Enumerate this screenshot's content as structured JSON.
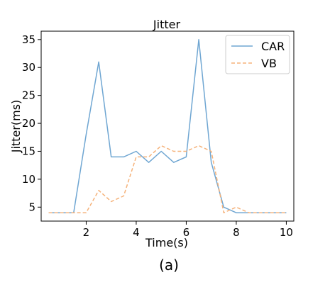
{
  "chart_data": {
    "type": "line",
    "title": "Jitter",
    "xlabel": "Time(s)",
    "ylabel": "Jitter(ms)",
    "caption": "(a)",
    "xlim": [
      0.2,
      10.3
    ],
    "ylim": [
      2.5,
      36.5
    ],
    "xticks": [
      2,
      4,
      6,
      8,
      10
    ],
    "yticks": [
      5,
      10,
      15,
      20,
      25,
      30,
      35
    ],
    "grid": false,
    "legend_position": "top-right",
    "series": [
      {
        "name": "CAR",
        "color": "#6fa6d2",
        "style": "solid",
        "x": [
          0.5,
          1,
          1.5,
          2,
          2.5,
          3,
          3.5,
          4,
          4.5,
          5,
          5.5,
          6,
          6.5,
          7,
          7.5,
          8,
          8.5,
          9,
          9.5,
          10
        ],
        "y": [
          4,
          4,
          4,
          18,
          31,
          14,
          14,
          15,
          13,
          15,
          13,
          14,
          35,
          13,
          5,
          4,
          4,
          4,
          4,
          4
        ]
      },
      {
        "name": "VB",
        "color": "#f5b27a",
        "style": "dashed",
        "x": [
          0.5,
          1,
          1.5,
          2,
          2.5,
          3,
          3.5,
          4,
          4.5,
          5,
          5.5,
          6,
          6.5,
          7,
          7.5,
          8,
          8.5,
          9,
          9.5,
          10
        ],
        "y": [
          4,
          4,
          4,
          4,
          8,
          6,
          7,
          14,
          14,
          16,
          15,
          15,
          16,
          15,
          4,
          5,
          4,
          4,
          4,
          4
        ]
      }
    ]
  }
}
